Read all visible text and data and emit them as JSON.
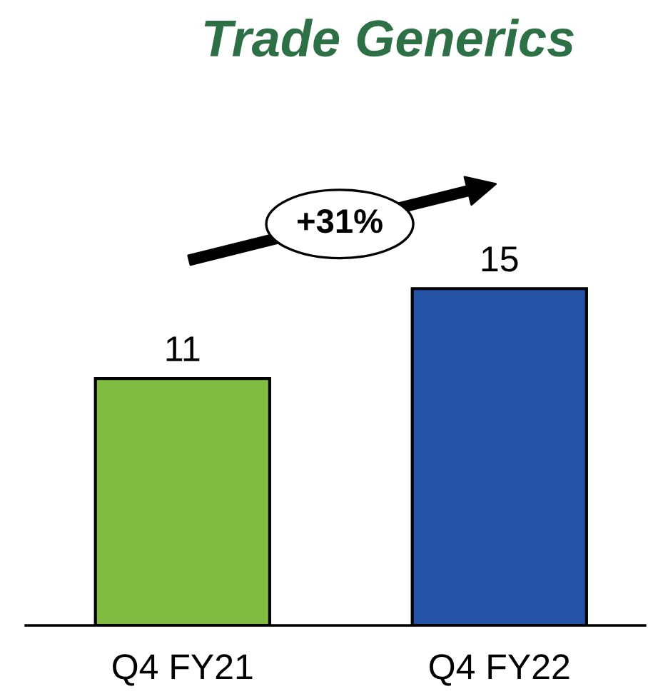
{
  "chart_data": {
    "type": "bar",
    "title": "Trade Generics",
    "categories": [
      "Q4 FY21",
      "Q4 FY22"
    ],
    "values": [
      11,
      15
    ],
    "colors": [
      "#80bc42",
      "#2554a6"
    ],
    "data_labels": true,
    "annotations": [
      "+31%"
    ]
  }
}
